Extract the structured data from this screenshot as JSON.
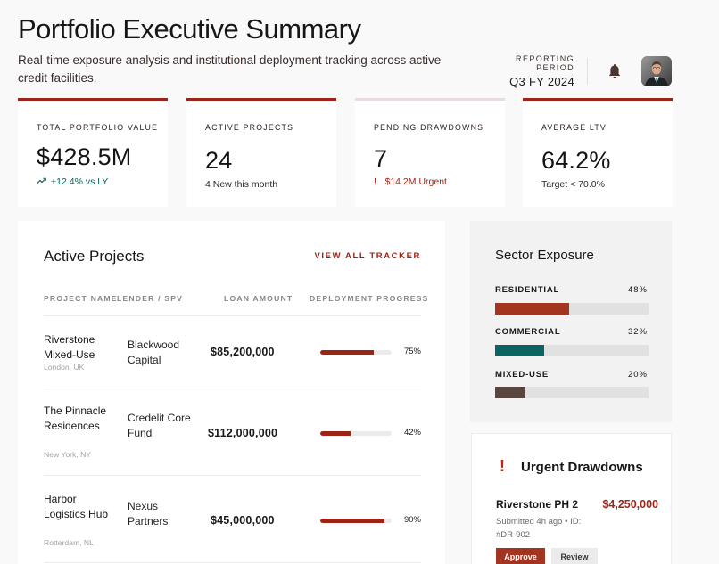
{
  "header": {
    "title": "Portfolio Executive Summary",
    "subtitle": "Real-time exposure analysis and institutional deployment tracking across active credit facilities.",
    "reporting_period_label": "REPORTING PERIOD",
    "reporting_period_value": "Q3 FY 2024",
    "notification_icon": "bell-icon",
    "avatar_alt": "User profile photo"
  },
  "kpis": [
    {
      "label": "TOTAL PORTFOLIO VALUE",
      "value": "$428.5M",
      "sub": "+12.4% vs LY",
      "sub_icon": "trending-up-icon"
    },
    {
      "label": "ACTIVE PROJECTS",
      "value": "24",
      "sub": "4 New this month"
    },
    {
      "label": "PENDING DRAWDOWNS",
      "value": "7",
      "sub": "$14.2M Urgent",
      "sub_icon": "exclamation-icon",
      "sub_icon_glyph": "!"
    },
    {
      "label": "AVERAGE LTV",
      "value": "64.2%",
      "sub": "Target < 70.0%"
    }
  ],
  "active_projects": {
    "title": "Active Projects",
    "view_all": "VIEW ALL TRACKER",
    "columns": [
      "PROJECT NAME",
      "LENDER / SPV",
      "LOAN AMOUNT",
      "DEPLOYMENT PROGRESS"
    ],
    "rows": [
      {
        "name": "Riverstone Mixed-Use",
        "location": "London, UK",
        "lender": "Blackwood Capital",
        "amount": "$85,200,000",
        "progress": 75,
        "progress_label": "75%"
      },
      {
        "name": "The Pinnacle Residences",
        "location": "New York, NY",
        "lender": "Credelit Core Fund",
        "amount": "$112,000,000",
        "progress": 42,
        "progress_label": "42%"
      },
      {
        "name": "Harbor Logistics Hub",
        "location": "Rotterdam, NL",
        "lender": "Nexus Partners",
        "amount": "$45,000,000",
        "progress": 90,
        "progress_label": "90%"
      }
    ]
  },
  "sector_exposure": {
    "title": "Sector Exposure",
    "sectors": [
      {
        "label": "RESIDENTIAL",
        "value": 48,
        "value_label": "48%",
        "color": "#a3341d"
      },
      {
        "label": "COMMERCIAL",
        "value": 32,
        "value_label": "32%",
        "color": "#0b6362"
      },
      {
        "label": "MIXED-USE",
        "value": 20,
        "value_label": "20%",
        "color": "#5a4640"
      }
    ]
  },
  "urgent_drawdowns": {
    "title": "Urgent Drawdowns",
    "icon_glyph": "!",
    "item": {
      "project": "Riverstone PH 2",
      "amount": "$4,250,000",
      "meta": "Submitted 4h ago • ID: #DR-902"
    },
    "approve_label": "Approve",
    "review_label": "Review"
  },
  "colors": {
    "accent": "#9b2414",
    "teal": "#0d5f5c",
    "background": "#f9f9f9"
  }
}
